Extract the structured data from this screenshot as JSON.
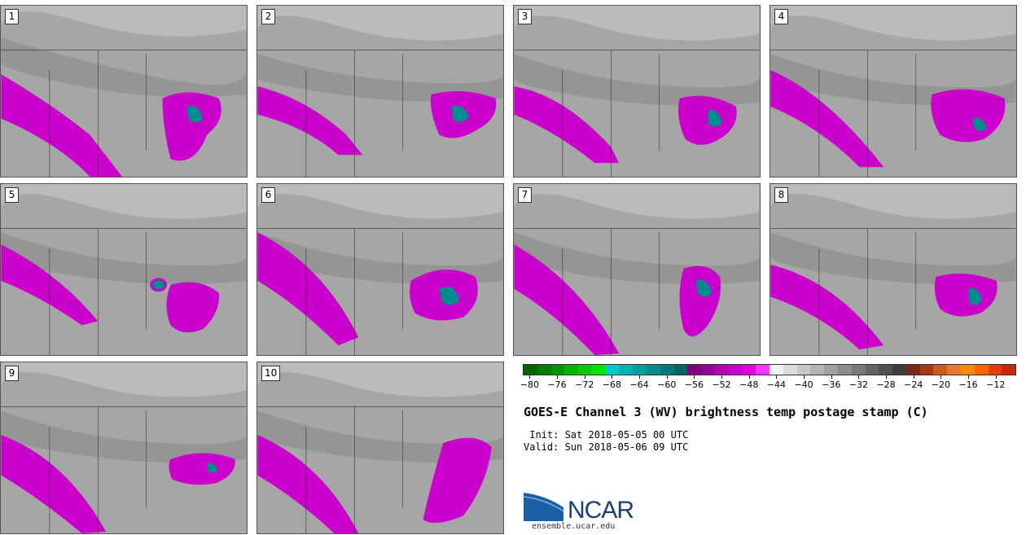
{
  "stamps": [
    {
      "label": "1"
    },
    {
      "label": "2"
    },
    {
      "label": "3"
    },
    {
      "label": "4"
    },
    {
      "label": "5"
    },
    {
      "label": "6"
    },
    {
      "label": "7"
    },
    {
      "label": "8"
    },
    {
      "label": "9"
    },
    {
      "label": "10"
    }
  ],
  "colorbar": {
    "colors": [
      "#006400",
      "#007d00",
      "#009600",
      "#00b400",
      "#00cc00",
      "#00e600",
      "#00cccc",
      "#00b4b4",
      "#00a0a0",
      "#008c8c",
      "#007878",
      "#006464",
      "#800080",
      "#960096",
      "#b400b4",
      "#cc00cc",
      "#e600e6",
      "#ff33ff",
      "#f2f2f2",
      "#dcdcdc",
      "#c8c8c8",
      "#b4b4b4",
      "#a0a0a0",
      "#8c8c8c",
      "#787878",
      "#646464",
      "#505050",
      "#3c3c3c",
      "#7a2814",
      "#a33c14",
      "#cc5a1e",
      "#e67828",
      "#ff8c00",
      "#ff6400",
      "#e63c0a",
      "#c8280a"
    ],
    "tick_labels": [
      "−80",
      "−76",
      "−72",
      "−68",
      "−64",
      "−60",
      "−56",
      "−52",
      "−48",
      "−44",
      "−40",
      "−36",
      "−32",
      "−28",
      "−24",
      "−20",
      "−16",
      "−12"
    ]
  },
  "title": "GOES-E Channel 3 (WV) brightness temp postage stamp (C)",
  "init": " Init: Sat 2018-05-05 00 UTC",
  "valid": "Valid: Sun 2018-05-06 09 UTC",
  "logo_text": "NCAR",
  "url": "ensemble.ucar.edu"
}
